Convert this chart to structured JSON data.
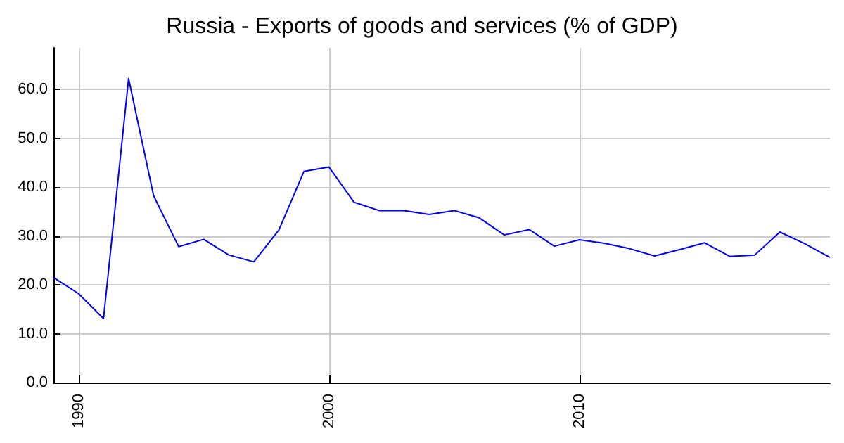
{
  "chart_data": {
    "type": "line",
    "title": "Russia - Exports of goods and services (% of GDP)",
    "x": [
      1989,
      1990,
      1991,
      1992,
      1993,
      1994,
      1995,
      1996,
      1997,
      1998,
      1999,
      2000,
      2001,
      2002,
      2003,
      2004,
      2005,
      2006,
      2007,
      2008,
      2009,
      2010,
      2011,
      2012,
      2013,
      2014,
      2015,
      2016,
      2017,
      2018,
      2019,
      2020
    ],
    "series": [
      {
        "color": "#0000ff",
        "values": [
          21.5,
          18.2,
          13.1,
          62.2,
          38.2,
          27.8,
          29.3,
          26.1,
          24.7,
          31.2,
          43.2,
          44.1,
          36.9,
          35.2,
          35.2,
          34.4,
          35.2,
          33.7,
          30.2,
          31.3,
          27.9,
          29.2,
          28.5,
          27.4,
          25.9,
          27.2,
          28.6,
          25.8,
          26.1,
          30.8,
          28.4,
          25.6
        ]
      }
    ],
    "xlim": [
      1989,
      2020
    ],
    "xticks": [
      1990,
      2000,
      2010
    ],
    "ylim": [
      0,
      68.5
    ],
    "yticks": [
      {
        "value": 0,
        "label": "0.0"
      },
      {
        "value": 10,
        "label": "10.0"
      },
      {
        "value": 20,
        "label": "20.0"
      },
      {
        "value": 30,
        "label": "30.0"
      },
      {
        "value": 40,
        "label": "40.0"
      },
      {
        "value": 50,
        "label": "50.0"
      },
      {
        "value": 60,
        "label": "60.0"
      }
    ],
    "grid": true,
    "marker": "none",
    "line_style": "solid"
  }
}
